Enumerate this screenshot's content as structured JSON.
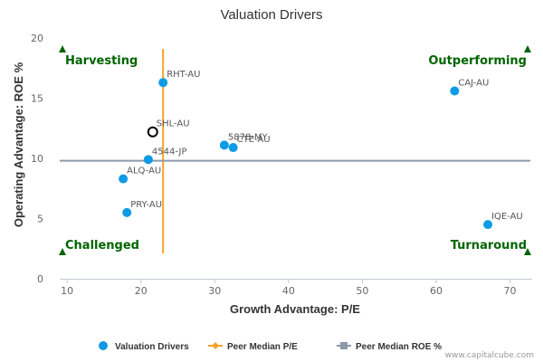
{
  "chart_data": {
    "type": "scatter",
    "title": "Valuation Drivers",
    "xlabel": "Growth Advantage: P/E",
    "ylabel": "Operating Advantage: ROE %",
    "xlim": [
      9,
      73
    ],
    "ylim": [
      0,
      20
    ],
    "xticks": [
      10,
      20,
      30,
      40,
      50,
      60,
      70
    ],
    "yticks": [
      0,
      5,
      10,
      15,
      20
    ],
    "grid": false,
    "legend_position": "bottom",
    "series": [
      {
        "name": "Valuation Drivers",
        "color": "#0f9ae6",
        "points": [
          {
            "label": "RHT-AU",
            "x": 23.0,
            "y": 16.3
          },
          {
            "label": "CAJ-AU",
            "x": 62.5,
            "y": 15.6
          },
          {
            "label": "5878-MY",
            "x": 31.3,
            "y": 11.1
          },
          {
            "label": "CTE-AU",
            "x": 32.5,
            "y": 10.9
          },
          {
            "label": "4544-JP",
            "x": 21.0,
            "y": 9.9
          },
          {
            "label": "ALQ-AU",
            "x": 17.6,
            "y": 8.3
          },
          {
            "label": "PRY-AU",
            "x": 18.1,
            "y": 5.5
          },
          {
            "label": "IQE-AU",
            "x": 67.0,
            "y": 4.5
          }
        ]
      }
    ],
    "highlighted_point": {
      "label": "SHL-AU",
      "x": 21.6,
      "y": 12.2
    },
    "reference_lines": [
      {
        "name": "Peer Median P/E",
        "axis": "x",
        "value": 23.0,
        "color": "#f7a12c",
        "extent": [
          2.1,
          19.1
        ]
      },
      {
        "name": "Peer Median ROE %",
        "axis": "y",
        "value": 9.8,
        "color": "#8c9aa8"
      }
    ],
    "quadrants": {
      "top_left": "Harvesting",
      "top_right": "Outperforming",
      "bottom_left": "Challenged",
      "bottom_right": "Turnaround"
    },
    "quadrant_marker_color": "#006400",
    "legend": [
      {
        "label": "Valuation Drivers",
        "symbol": "circle",
        "color": "#0f9ae6"
      },
      {
        "label": "Peer Median P/E",
        "symbol": "line-diamond",
        "color": "#f7a12c"
      },
      {
        "label": "Peer Median ROE %",
        "symbol": "line-square",
        "color": "#8c9aa8"
      }
    ]
  },
  "credit": "www.capitalcube.com"
}
